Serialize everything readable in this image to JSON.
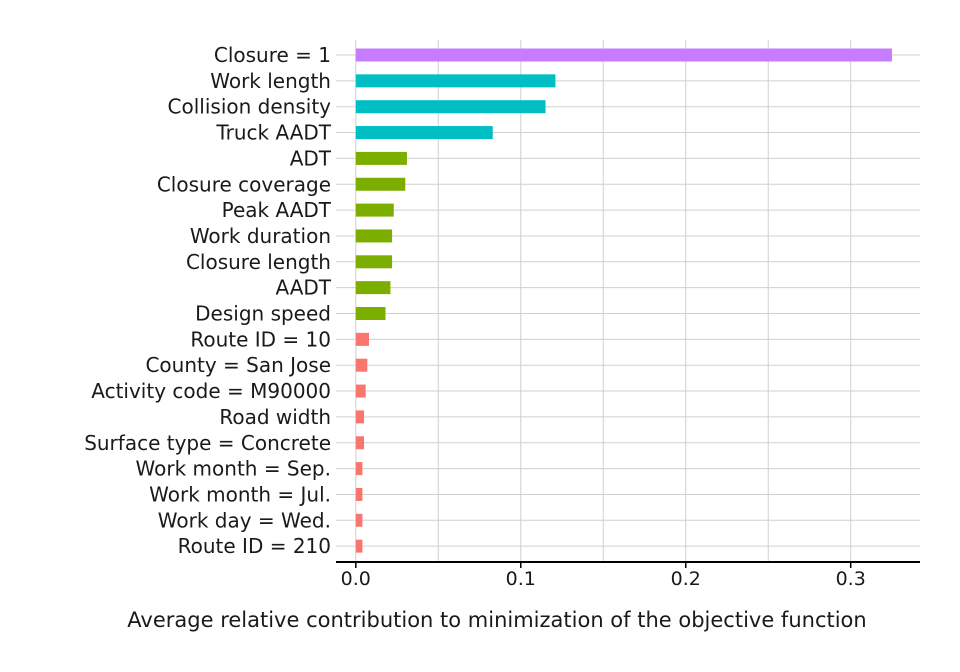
{
  "chart_data": {
    "type": "bar",
    "orientation": "horizontal",
    "title": "",
    "xlabel": "Average relative contribution to minimization of the objective function",
    "ylabel": "",
    "xlim": [
      -0.012,
      0.342
    ],
    "xticks": [
      0.0,
      0.1,
      0.2,
      0.3
    ],
    "xtick_labels": [
      "0.0",
      "0.1",
      "0.2",
      "0.3"
    ],
    "grid": true,
    "legend": "none",
    "categories": [
      "Closure = 1",
      "Work length",
      "Collision density",
      "Truck AADT",
      "ADT",
      "Closure coverage",
      "Peak AADT",
      "Work duration",
      "Closure length",
      "AADT",
      "Design speed",
      "Route ID = 10",
      "County = San Jose",
      "Activity code = M90000",
      "Road width",
      "Surface type = Concrete",
      "Work month = Sep.",
      "Work month = Jul.",
      "Work day = Wed.",
      "Route ID = 210"
    ],
    "values": [
      0.325,
      0.121,
      0.115,
      0.083,
      0.031,
      0.03,
      0.023,
      0.022,
      0.022,
      0.021,
      0.018,
      0.008,
      0.007,
      0.006,
      0.005,
      0.005,
      0.004,
      0.004,
      0.004,
      0.004
    ],
    "bar_colors": [
      "#C77CFF",
      "#00BFC4",
      "#00BFC4",
      "#00BFC4",
      "#7CAE00",
      "#7CAE00",
      "#7CAE00",
      "#7CAE00",
      "#7CAE00",
      "#7CAE00",
      "#7CAE00",
      "#F8766D",
      "#F8766D",
      "#F8766D",
      "#F8766D",
      "#F8766D",
      "#F8766D",
      "#F8766D",
      "#F8766D",
      "#F8766D"
    ]
  }
}
